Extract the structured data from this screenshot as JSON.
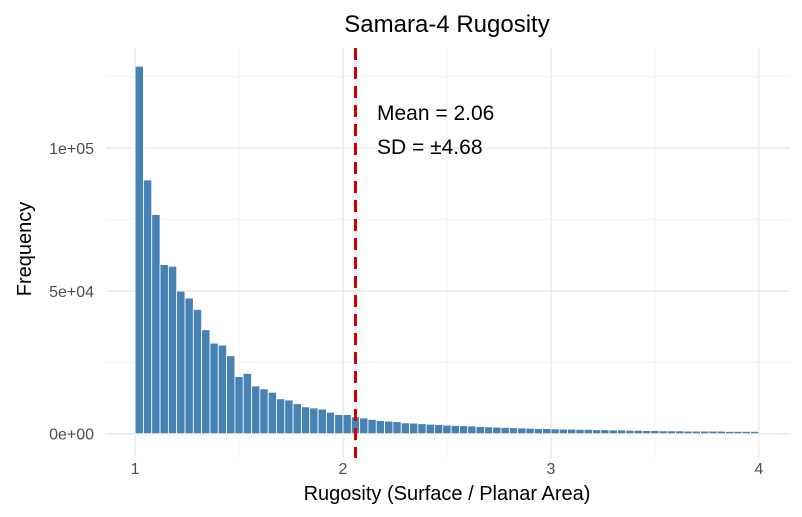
{
  "chart_data": {
    "type": "bar",
    "title": "Samara-4 Rugosity",
    "xlabel": "Rugosity (Surface / Planar Area)",
    "ylabel": "Frequency",
    "xlim": [
      0.86,
      4.15
    ],
    "ylim": [
      -8500,
      135000
    ],
    "x_ticks": [
      1,
      2,
      3,
      4
    ],
    "x_tick_labels": [
      "1",
      "2",
      "3",
      "4"
    ],
    "y_ticks": [
      0,
      50000,
      100000
    ],
    "y_tick_labels": [
      "0e+00",
      "5e+04",
      "1e+05"
    ],
    "grid": true,
    "bin_width": 0.04,
    "bin_start": 1.0,
    "bar_color": "#4682B4",
    "values": [
      128600,
      88800,
      76700,
      59200,
      58600,
      49900,
      47500,
      43500,
      36400,
      31700,
      31000,
      27300,
      20000,
      21100,
      16700,
      15700,
      14500,
      12200,
      11800,
      10500,
      9400,
      9000,
      8600,
      7500,
      6700,
      6700,
      5900,
      5500,
      5000,
      4600,
      4400,
      4200,
      3800,
      3700,
      3500,
      3300,
      3200,
      3000,
      2900,
      2800,
      2700,
      2500,
      2400,
      2300,
      2200,
      2100,
      2000,
      1900,
      1800,
      1800,
      1700,
      1600,
      1600,
      1500,
      1500,
      1400,
      1400,
      1300,
      1300,
      1200,
      1200,
      1100,
      1100,
      1000,
      1000,
      1000,
      900,
      900,
      900,
      900,
      900,
      800,
      800,
      800,
      800
    ],
    "mean_line": {
      "x": 2.06,
      "color": "#cc0000"
    },
    "annotations": [
      "Mean = 2.06",
      "SD = ±4.68"
    ]
  }
}
